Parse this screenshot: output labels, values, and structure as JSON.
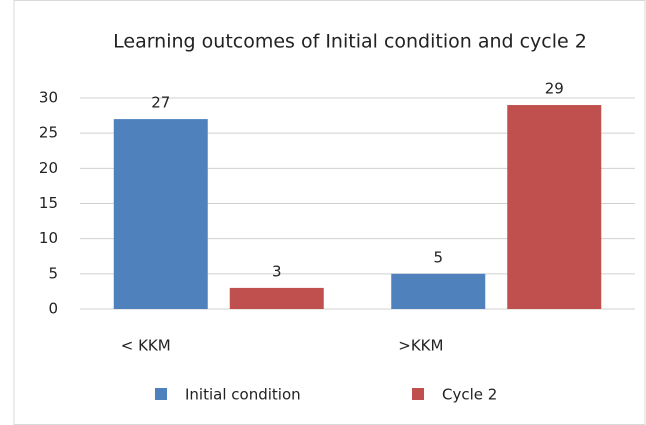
{
  "chart_data": {
    "type": "bar",
    "title": "Learning outcomes of Initial condition and cycle 2",
    "categories": [
      "< KKM",
      ">KKM"
    ],
    "series": [
      {
        "name": "Initial condition",
        "color": "#4f81bd",
        "values": [
          27,
          5
        ]
      },
      {
        "name": "Cycle 2",
        "color": "#c0504d",
        "values": [
          3,
          29
        ]
      }
    ],
    "ylim": [
      0,
      30
    ],
    "yticks": [
      0,
      5,
      10,
      15,
      20,
      25,
      30
    ],
    "grid": true,
    "legend": "bottom"
  }
}
